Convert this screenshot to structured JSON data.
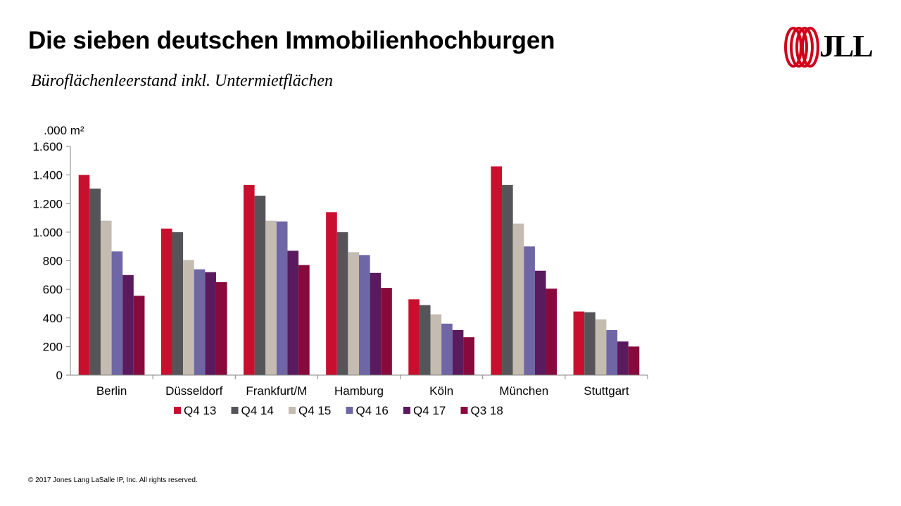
{
  "header": {
    "title": "Die sieben deutschen Immobilienhochburgen",
    "subtitle": "Büroflächenleerstand inkl. Untermietflächen",
    "logo_text": "JLL"
  },
  "footer": {
    "copyright": "© 2017 Jones Lang LaSalle IP, Inc. All rights reserved."
  },
  "chart_data": {
    "type": "bar",
    "unit_label": ".000 m²",
    "ylim": [
      0,
      1600
    ],
    "yticks": [
      0,
      200,
      400,
      600,
      800,
      1000,
      1200,
      1400,
      1600
    ],
    "ytick_labels": [
      "0",
      "200",
      "400",
      "600",
      "800",
      "1.000",
      "1.200",
      "1.400",
      "1.600"
    ],
    "grid": false,
    "legend_position": "bottom",
    "categories": [
      "Berlin",
      "Düsseldorf",
      "Frankfurt/M",
      "Hamburg",
      "Köln",
      "München",
      "Stuttgart"
    ],
    "series": [
      {
        "name": "Q4 13",
        "color": "#c8102e",
        "values": [
          1400,
          1025,
          1330,
          1140,
          530,
          1460,
          445
        ]
      },
      {
        "name": "Q4 14",
        "color": "#555559",
        "values": [
          1305,
          1000,
          1255,
          1000,
          490,
          1330,
          440
        ]
      },
      {
        "name": "Q4 15",
        "color": "#c4bcb0",
        "values": [
          1080,
          805,
          1080,
          860,
          425,
          1060,
          390
        ]
      },
      {
        "name": "Q4 16",
        "color": "#6f66a6",
        "values": [
          865,
          740,
          1075,
          840,
          360,
          900,
          315
        ]
      },
      {
        "name": "Q4 17",
        "color": "#5a1a5e",
        "values": [
          700,
          720,
          870,
          715,
          315,
          730,
          235
        ]
      },
      {
        "name": "Q3 18",
        "color": "#880a3c",
        "values": [
          555,
          650,
          770,
          610,
          265,
          605,
          200
        ]
      }
    ]
  }
}
